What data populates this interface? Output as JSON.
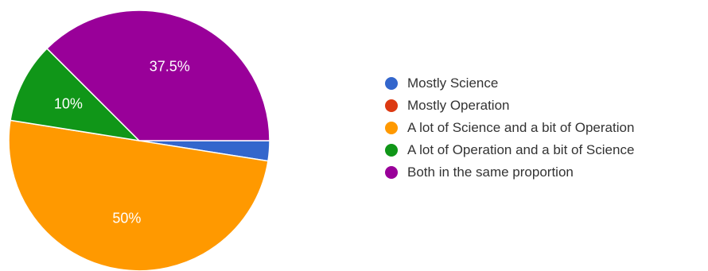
{
  "chart_data": {
    "type": "pie",
    "start_angle_deg": 90,
    "direction": "clockwise",
    "slices": [
      {
        "label": "Mostly Science",
        "value": 2.5,
        "color": "#3366cc",
        "data_label": ""
      },
      {
        "label": "Mostly Operation",
        "value": 0,
        "color": "#dc3912",
        "data_label": ""
      },
      {
        "label": "A lot of Science and a bit of Operation",
        "value": 50,
        "color": "#ff9900",
        "data_label": "50%"
      },
      {
        "label": "A lot of Operation and a bit of Science",
        "value": 10,
        "color": "#109618",
        "data_label": "10%"
      },
      {
        "label": "Both in the same proportion",
        "value": 37.5,
        "color": "#990099",
        "data_label": "37.5%"
      }
    ],
    "legend_position": "right"
  }
}
